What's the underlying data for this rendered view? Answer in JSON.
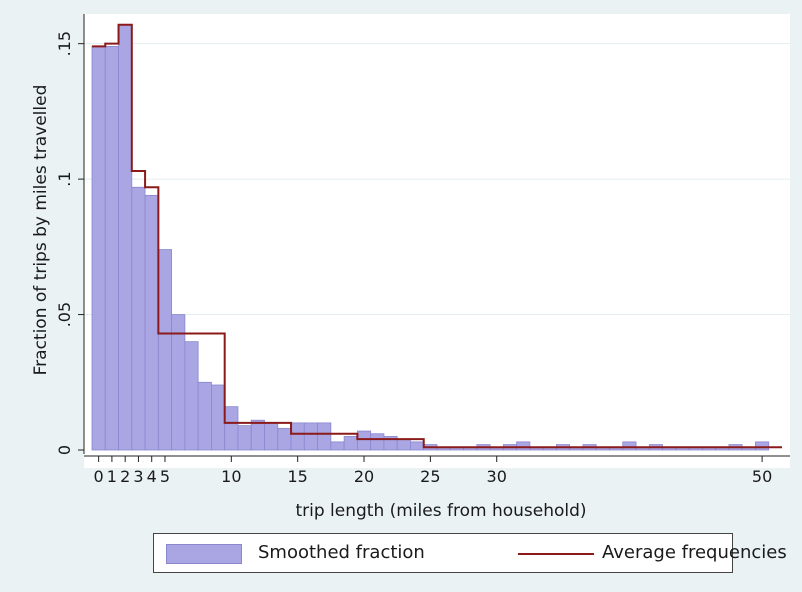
{
  "chart_data": {
    "type": "bar",
    "xlabel": "trip length (miles from household)",
    "ylabel": "Fraction of trips by miles travelled",
    "xlim": [
      -0.5,
      51.5
    ],
    "ylim": [
      0,
      0.158
    ],
    "x_ticks": [
      {
        "value": 0,
        "label": "0"
      },
      {
        "value": 1,
        "label": "1"
      },
      {
        "value": 2,
        "label": "2"
      },
      {
        "value": 3,
        "label": "3"
      },
      {
        "value": 4,
        "label": "4"
      },
      {
        "value": 5,
        "label": "5"
      },
      {
        "value": 10,
        "label": "10"
      },
      {
        "value": 15,
        "label": "15"
      },
      {
        "value": 20,
        "label": "20"
      },
      {
        "value": 25,
        "label": "25"
      },
      {
        "value": 30,
        "label": "30"
      },
      {
        "value": 50,
        "label": "50"
      }
    ],
    "y_ticks": [
      {
        "value": 0,
        "label": "0"
      },
      {
        "value": 0.05,
        "label": ".05"
      },
      {
        "value": 0.1,
        "label": ".1"
      },
      {
        "value": 0.15,
        "label": ".15"
      }
    ],
    "grid": true,
    "legend_position": "bottom",
    "colors": {
      "bars": "#a9a6e3",
      "bar_edge": "#8a87cf",
      "line": "#8b1a1a",
      "plot_bg": "#ffffff",
      "page_bg": "#eaf2f3"
    },
    "series": [
      {
        "name": "Smoothed fraction",
        "type": "bar",
        "bin_width": 1,
        "bins": [
          {
            "x": 0,
            "y": 0.149
          },
          {
            "x": 1,
            "y": 0.149
          },
          {
            "x": 2,
            "y": 0.157
          },
          {
            "x": 3,
            "y": 0.097
          },
          {
            "x": 4,
            "y": 0.094
          },
          {
            "x": 5,
            "y": 0.074
          },
          {
            "x": 6,
            "y": 0.05
          },
          {
            "x": 7,
            "y": 0.04
          },
          {
            "x": 8,
            "y": 0.025
          },
          {
            "x": 9,
            "y": 0.024
          },
          {
            "x": 10,
            "y": 0.016
          },
          {
            "x": 11,
            "y": 0.009
          },
          {
            "x": 12,
            "y": 0.011
          },
          {
            "x": 13,
            "y": 0.01
          },
          {
            "x": 14,
            "y": 0.008
          },
          {
            "x": 15,
            "y": 0.01
          },
          {
            "x": 16,
            "y": 0.01
          },
          {
            "x": 17,
            "y": 0.01
          },
          {
            "x": 18,
            "y": 0.003
          },
          {
            "x": 19,
            "y": 0.005
          },
          {
            "x": 20,
            "y": 0.007
          },
          {
            "x": 21,
            "y": 0.006
          },
          {
            "x": 22,
            "y": 0.005
          },
          {
            "x": 23,
            "y": 0.004
          },
          {
            "x": 24,
            "y": 0.003
          },
          {
            "x": 25,
            "y": 0.002
          },
          {
            "x": 26,
            "y": 0.001
          },
          {
            "x": 27,
            "y": 0.001
          },
          {
            "x": 28,
            "y": 0.001
          },
          {
            "x": 29,
            "y": 0.002
          },
          {
            "x": 30,
            "y": 0.001
          },
          {
            "x": 31,
            "y": 0.002
          },
          {
            "x": 32,
            "y": 0.003
          },
          {
            "x": 33,
            "y": 0.001
          },
          {
            "x": 34,
            "y": 0.001
          },
          {
            "x": 35,
            "y": 0.002
          },
          {
            "x": 36,
            "y": 0.001
          },
          {
            "x": 37,
            "y": 0.002
          },
          {
            "x": 38,
            "y": 0.001
          },
          {
            "x": 39,
            "y": 0.001
          },
          {
            "x": 40,
            "y": 0.003
          },
          {
            "x": 41,
            "y": 0.001
          },
          {
            "x": 42,
            "y": 0.002
          },
          {
            "x": 43,
            "y": 0.001
          },
          {
            "x": 44,
            "y": 0.001
          },
          {
            "x": 45,
            "y": 0.001
          },
          {
            "x": 46,
            "y": 0.001
          },
          {
            "x": 47,
            "y": 0.001
          },
          {
            "x": 48,
            "y": 0.002
          },
          {
            "x": 49,
            "y": 0.001
          },
          {
            "x": 50,
            "y": 0.003
          }
        ]
      },
      {
        "name": "Average frequencies",
        "type": "step",
        "segments": [
          {
            "x0": -0.5,
            "x1": 0.5,
            "y": 0.149
          },
          {
            "x0": 0.5,
            "x1": 1.5,
            "y": 0.15
          },
          {
            "x0": 1.5,
            "x1": 2.5,
            "y": 0.157
          },
          {
            "x0": 2.5,
            "x1": 3.5,
            "y": 0.103
          },
          {
            "x0": 3.5,
            "x1": 4.5,
            "y": 0.097
          },
          {
            "x0": 4.5,
            "x1": 9.5,
            "y": 0.043
          },
          {
            "x0": 9.5,
            "x1": 14.5,
            "y": 0.01
          },
          {
            "x0": 14.5,
            "x1": 19.5,
            "y": 0.006
          },
          {
            "x0": 19.5,
            "x1": 24.5,
            "y": 0.004
          },
          {
            "x0": 24.5,
            "x1": 51.5,
            "y": 0.001
          }
        ]
      }
    ]
  },
  "legend": {
    "bars_label": "Smoothed fraction",
    "line_label": "Average frequencies"
  }
}
